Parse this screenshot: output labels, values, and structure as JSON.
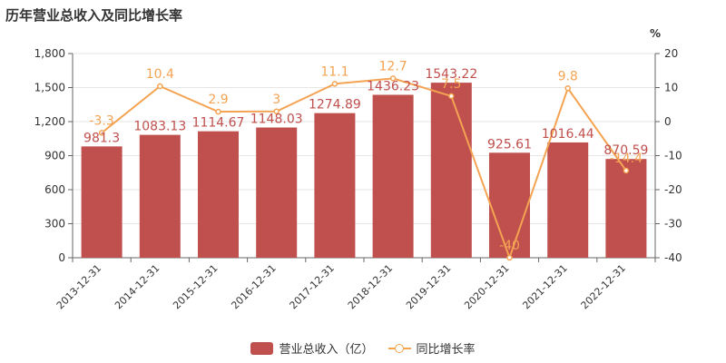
{
  "chart_data": {
    "type": "bar",
    "title": "历年营业总收入及同比增长率",
    "categories": [
      "2013-12-31",
      "2014-12-31",
      "2015-12-31",
      "2016-12-31",
      "2017-12-31",
      "2018-12-31",
      "2019-12-31",
      "2020-12-31",
      "2021-12-31",
      "2022-12-31"
    ],
    "series": [
      {
        "name": "营业总收入（亿）",
        "type": "bar",
        "axis": "left",
        "color": "#c0504d",
        "values": [
          981.3,
          1083.13,
          1114.67,
          1148.03,
          1274.89,
          1436.23,
          1543.22,
          925.61,
          1016.44,
          870.59
        ],
        "labels": [
          "981.3",
          "1083.13",
          "1114.67",
          "1148.03",
          "1274.89",
          "1436.23",
          "1543.22",
          "925.61",
          "1016.44",
          "870.59"
        ]
      },
      {
        "name": "同比增长率",
        "type": "line",
        "axis": "right",
        "color": "#f4a352",
        "values": [
          -3.3,
          10.4,
          2.9,
          3,
          11.1,
          12.7,
          7.5,
          -40,
          9.8,
          -14.4
        ],
        "labels": [
          "-3.3",
          "10.4",
          "2.9",
          "3",
          "11.1",
          "12.7",
          "7.5",
          "-40",
          "9.8",
          "-14.4"
        ]
      }
    ],
    "y_left": {
      "min": 0,
      "max": 1800,
      "ticks": [
        "0",
        "300",
        "600",
        "900",
        "1,200",
        "1,500",
        "1,800"
      ]
    },
    "y_right": {
      "min": -40,
      "max": 20,
      "unit": "%",
      "ticks": [
        "-40",
        "-30",
        "-20",
        "-10",
        "0",
        "10",
        "20"
      ]
    },
    "grid": true,
    "legend": "bottom-center"
  },
  "legend": {
    "bar_label": "营业总收入（亿）",
    "line_label": "同比增长率"
  }
}
